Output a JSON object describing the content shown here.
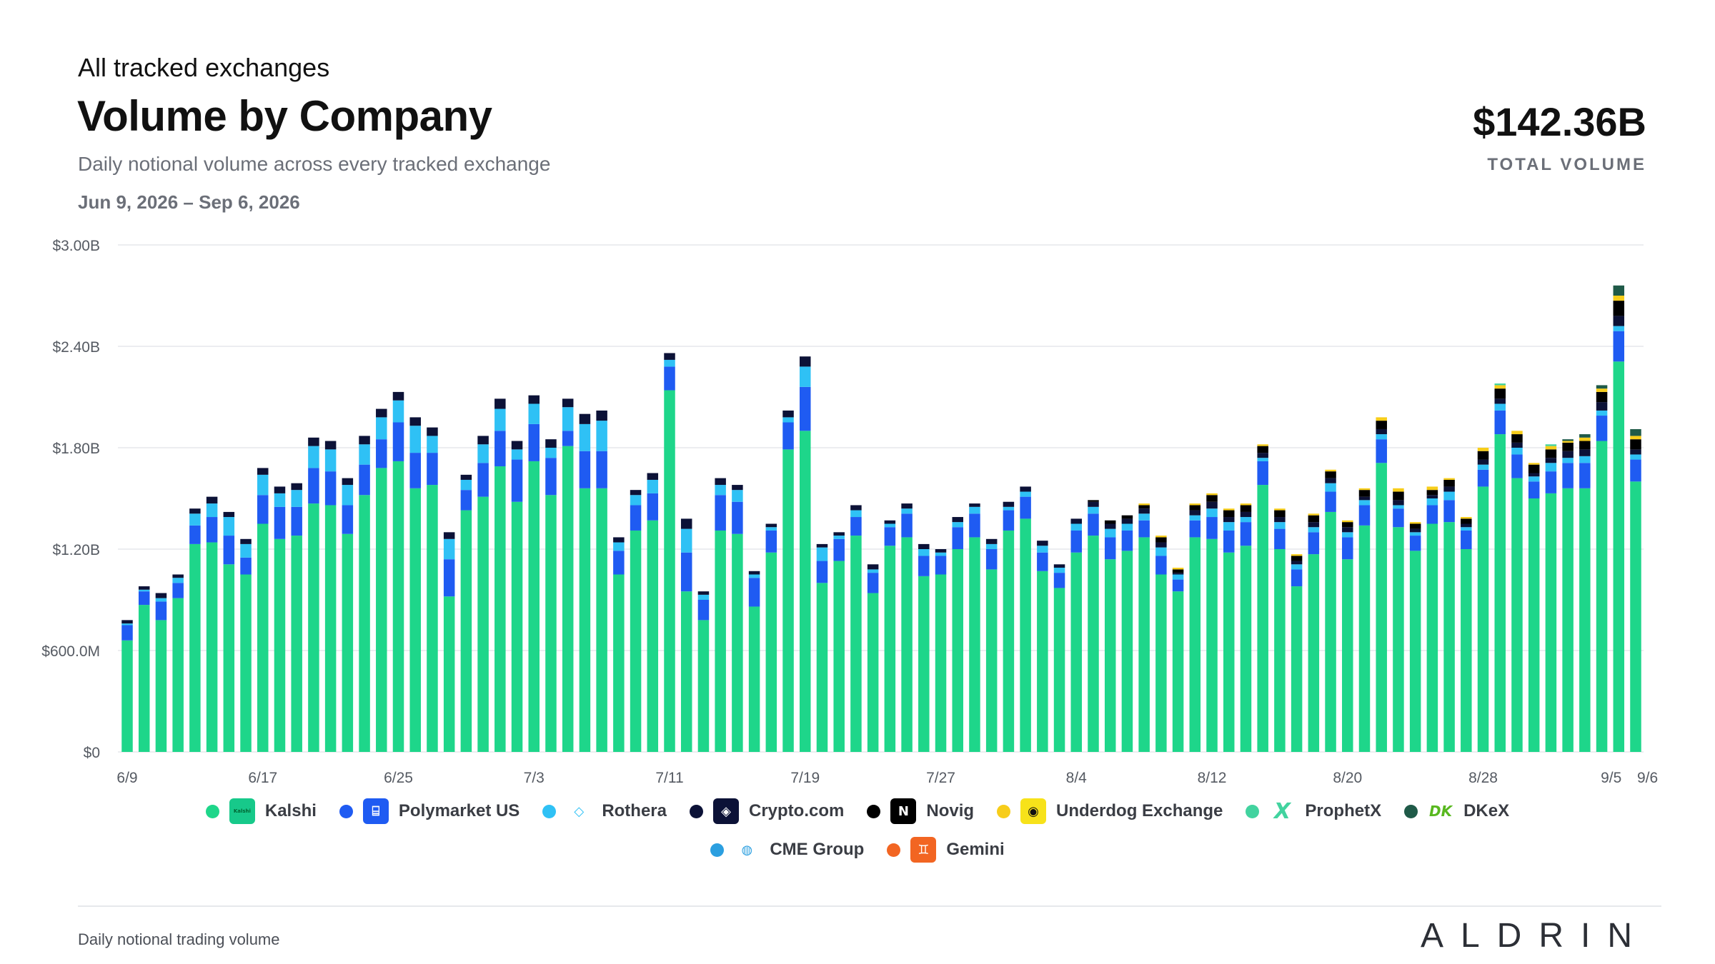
{
  "header": {
    "kicker": "All tracked exchanges",
    "title": "Volume by Company",
    "subtitle": "Daily notional volume across every tracked exchange",
    "date_range": "Jun 9, 2026 – Sep 6, 2026",
    "total_value": "$142.36B",
    "total_label": "TOTAL VOLUME"
  },
  "footer": {
    "note": "Daily notional trading volume",
    "brand": "ALDRIN"
  },
  "legend": [
    {
      "name": "Kalshi",
      "color": "#1ed68a",
      "logo_bg": "#17c98a",
      "logo_text": "Kalshi",
      "icon": "kalshi-logo"
    },
    {
      "name": "Polymarket US",
      "color": "#1f5bf2",
      "logo_bg": "#1f5bf2",
      "logo_text": "⌸",
      "icon": "polymarket-logo"
    },
    {
      "name": "Rothera",
      "color": "#2fc1f5",
      "logo_bg": "#ffffff",
      "logo_text": "◇",
      "icon": "rothera-logo"
    },
    {
      "name": "Crypto.com",
      "color": "#0c1237",
      "logo_bg": "#0c1237",
      "logo_text": "◈",
      "icon": "crypto-com-logo"
    },
    {
      "name": "Novig",
      "color": "#000000",
      "logo_bg": "#000000",
      "logo_text": "N",
      "icon": "novig-logo"
    },
    {
      "name": "Underdog Exchange",
      "color": "#f7cd1a",
      "logo_bg": "#f7e21a",
      "logo_text": "◉",
      "icon": "underdog-logo"
    },
    {
      "name": "ProphetX",
      "color": "#42d39f",
      "logo_bg": "#ffffff",
      "logo_text": "X",
      "icon": "prophetx-logo"
    },
    {
      "name": "DKeX",
      "color": "#1f5a48",
      "logo_bg": "#ffffff",
      "logo_text": "DK",
      "icon": "dkex-logo"
    },
    {
      "name": "CME Group",
      "color": "#2b9fe0",
      "logo_bg": "#ffffff",
      "logo_text": "◍",
      "icon": "cme-group-logo"
    },
    {
      "name": "Gemini",
      "color": "#f26522",
      "logo_bg": "#f26522",
      "logo_text": "♊",
      "icon": "gemini-logo"
    }
  ],
  "chart_data": {
    "type": "bar",
    "stacked": true,
    "y_ticks": [
      "$0",
      "$600.0M",
      "$1.20B",
      "$1.80B",
      "$2.40B",
      "$3.00B"
    ],
    "ylim": [
      0,
      3.0
    ],
    "y_unit": "B",
    "x_tick_labels": [
      {
        "label": "6/9",
        "index": 0
      },
      {
        "label": "6/17",
        "index": 8
      },
      {
        "label": "6/25",
        "index": 16
      },
      {
        "label": "7/3",
        "index": 24
      },
      {
        "label": "7/11",
        "index": 32
      },
      {
        "label": "7/19",
        "index": 40
      },
      {
        "label": "7/27",
        "index": 48
      },
      {
        "label": "8/4",
        "index": 56
      },
      {
        "label": "8/12",
        "index": 64
      },
      {
        "label": "8/20",
        "index": 72
      },
      {
        "label": "8/28",
        "index": 80
      },
      {
        "label": "9/5",
        "index": 88
      },
      {
        "label": "9/6",
        "index": 89
      }
    ],
    "grid": true,
    "series_names": [
      "Kalshi",
      "Polymarket US",
      "Rothera",
      "Crypto.com",
      "Novig",
      "Underdog Exchange",
      "ProphetX",
      "DKeX"
    ],
    "series_colors": [
      "#1ed68a",
      "#1f5bf2",
      "#2fc1f5",
      "#0c1237",
      "#000000",
      "#f7cd1a",
      "#42d39f",
      "#1f5a48"
    ],
    "categories": [
      "6/9",
      "6/10",
      "6/11",
      "6/12",
      "6/13",
      "6/14",
      "6/15",
      "6/16",
      "6/17",
      "6/18",
      "6/19",
      "6/20",
      "6/21",
      "6/22",
      "6/23",
      "6/24",
      "6/25",
      "6/26",
      "6/27",
      "6/28",
      "6/29",
      "6/30",
      "7/1",
      "7/2",
      "7/3",
      "7/4",
      "7/5",
      "7/6",
      "7/7",
      "7/8",
      "7/9",
      "7/10",
      "7/11",
      "7/12",
      "7/13",
      "7/14",
      "7/15",
      "7/16",
      "7/17",
      "7/18",
      "7/19",
      "7/20",
      "7/21",
      "7/22",
      "7/23",
      "7/24",
      "7/25",
      "7/26",
      "7/27",
      "7/28",
      "7/29",
      "7/30",
      "7/31",
      "8/1",
      "8/2",
      "8/3",
      "8/4",
      "8/5",
      "8/6",
      "8/7",
      "8/8",
      "8/9",
      "8/10",
      "8/11",
      "8/12",
      "8/13",
      "8/14",
      "8/15",
      "8/16",
      "8/17",
      "8/18",
      "8/19",
      "8/20",
      "8/21",
      "8/22",
      "8/23",
      "8/24",
      "8/25",
      "8/26",
      "8/27",
      "8/28",
      "8/29",
      "8/30",
      "8/31",
      "9/1",
      "9/2",
      "9/3",
      "9/4",
      "9/5",
      "9/6"
    ],
    "stacks": [
      [
        0.66,
        0.09,
        0.01,
        0.02,
        0,
        0,
        0,
        0
      ],
      [
        0.87,
        0.08,
        0.01,
        0.02,
        0,
        0,
        0,
        0
      ],
      [
        0.78,
        0.11,
        0.02,
        0.03,
        0,
        0,
        0,
        0
      ],
      [
        0.91,
        0.09,
        0.03,
        0.02,
        0,
        0,
        0,
        0
      ],
      [
        1.23,
        0.11,
        0.07,
        0.03,
        0,
        0,
        0,
        0
      ],
      [
        1.24,
        0.15,
        0.08,
        0.04,
        0,
        0,
        0,
        0
      ],
      [
        1.11,
        0.17,
        0.11,
        0.03,
        0,
        0,
        0,
        0
      ],
      [
        1.05,
        0.1,
        0.08,
        0.03,
        0,
        0,
        0,
        0
      ],
      [
        1.35,
        0.17,
        0.12,
        0.04,
        0,
        0,
        0,
        0
      ],
      [
        1.26,
        0.19,
        0.08,
        0.04,
        0,
        0,
        0,
        0
      ],
      [
        1.28,
        0.17,
        0.1,
        0.04,
        0,
        0,
        0,
        0
      ],
      [
        1.47,
        0.21,
        0.13,
        0.05,
        0,
        0,
        0,
        0
      ],
      [
        1.46,
        0.2,
        0.13,
        0.05,
        0,
        0,
        0,
        0
      ],
      [
        1.29,
        0.17,
        0.12,
        0.04,
        0,
        0,
        0,
        0
      ],
      [
        1.52,
        0.18,
        0.12,
        0.05,
        0,
        0,
        0,
        0
      ],
      [
        1.68,
        0.17,
        0.13,
        0.05,
        0,
        0,
        0,
        0
      ],
      [
        1.72,
        0.23,
        0.13,
        0.05,
        0,
        0,
        0,
        0
      ],
      [
        1.56,
        0.21,
        0.16,
        0.05,
        0,
        0,
        0,
        0
      ],
      [
        1.58,
        0.19,
        0.1,
        0.05,
        0,
        0,
        0,
        0
      ],
      [
        0.92,
        0.22,
        0.12,
        0.04,
        0,
        0,
        0,
        0
      ],
      [
        1.43,
        0.12,
        0.06,
        0.03,
        0,
        0,
        0,
        0
      ],
      [
        1.51,
        0.2,
        0.11,
        0.05,
        0,
        0,
        0,
        0
      ],
      [
        1.69,
        0.21,
        0.13,
        0.06,
        0,
        0,
        0,
        0
      ],
      [
        1.48,
        0.25,
        0.06,
        0.05,
        0,
        0,
        0,
        0
      ],
      [
        1.72,
        0.22,
        0.12,
        0.05,
        0,
        0,
        0,
        0
      ],
      [
        1.52,
        0.22,
        0.06,
        0.05,
        0,
        0,
        0,
        0
      ],
      [
        1.81,
        0.09,
        0.14,
        0.05,
        0,
        0,
        0,
        0
      ],
      [
        1.56,
        0.22,
        0.16,
        0.06,
        0,
        0,
        0,
        0
      ],
      [
        1.56,
        0.22,
        0.18,
        0.06,
        0,
        0,
        0,
        0
      ],
      [
        1.05,
        0.14,
        0.05,
        0.03,
        0,
        0,
        0,
        0
      ],
      [
        1.31,
        0.15,
        0.06,
        0.03,
        0,
        0,
        0,
        0
      ],
      [
        1.37,
        0.16,
        0.08,
        0.04,
        0,
        0,
        0,
        0
      ],
      [
        2.14,
        0.14,
        0.04,
        0.04,
        0,
        0,
        0,
        0
      ],
      [
        0.95,
        0.23,
        0.14,
        0.06,
        0,
        0,
        0,
        0
      ],
      [
        0.78,
        0.12,
        0.03,
        0.02,
        0,
        0,
        0,
        0
      ],
      [
        1.31,
        0.21,
        0.06,
        0.04,
        0,
        0,
        0,
        0
      ],
      [
        1.29,
        0.19,
        0.07,
        0.03,
        0,
        0,
        0,
        0
      ],
      [
        0.86,
        0.17,
        0.02,
        0.02,
        0,
        0,
        0,
        0
      ],
      [
        1.18,
        0.13,
        0.02,
        0.02,
        0,
        0,
        0,
        0
      ],
      [
        1.79,
        0.16,
        0.03,
        0.04,
        0,
        0,
        0,
        0
      ],
      [
        1.9,
        0.26,
        0.12,
        0.06,
        0,
        0,
        0,
        0
      ],
      [
        1.0,
        0.13,
        0.08,
        0.02,
        0,
        0,
        0,
        0
      ],
      [
        1.13,
        0.13,
        0.02,
        0.02,
        0,
        0,
        0,
        0
      ],
      [
        1.28,
        0.11,
        0.04,
        0.03,
        0,
        0,
        0,
        0
      ],
      [
        0.94,
        0.12,
        0.02,
        0.03,
        0,
        0,
        0,
        0
      ],
      [
        1.22,
        0.11,
        0.02,
        0.02,
        0,
        0,
        0,
        0
      ],
      [
        1.27,
        0.14,
        0.03,
        0.03,
        0,
        0,
        0,
        0
      ],
      [
        1.04,
        0.12,
        0.04,
        0.03,
        0,
        0,
        0,
        0
      ],
      [
        1.05,
        0.11,
        0.02,
        0.02,
        0,
        0,
        0,
        0
      ],
      [
        1.2,
        0.13,
        0.03,
        0.03,
        0,
        0,
        0,
        0
      ],
      [
        1.27,
        0.14,
        0.04,
        0.02,
        0,
        0,
        0,
        0
      ],
      [
        1.08,
        0.12,
        0.03,
        0.03,
        0,
        0,
        0,
        0
      ],
      [
        1.31,
        0.12,
        0.02,
        0.03,
        0,
        0,
        0,
        0
      ],
      [
        1.38,
        0.13,
        0.03,
        0.03,
        0,
        0,
        0,
        0
      ],
      [
        1.07,
        0.11,
        0.04,
        0.03,
        0,
        0,
        0,
        0
      ],
      [
        0.97,
        0.09,
        0.03,
        0.02,
        0,
        0,
        0,
        0
      ],
      [
        1.18,
        0.13,
        0.04,
        0.03,
        0,
        0,
        0,
        0
      ],
      [
        1.28,
        0.13,
        0.04,
        0.03,
        0.01,
        0,
        0,
        0
      ],
      [
        1.14,
        0.13,
        0.05,
        0.03,
        0.02,
        0,
        0,
        0
      ],
      [
        1.19,
        0.12,
        0.04,
        0.03,
        0.02,
        0,
        0,
        0
      ],
      [
        1.27,
        0.1,
        0.04,
        0.03,
        0.02,
        0.01,
        0,
        0
      ],
      [
        1.05,
        0.11,
        0.05,
        0.03,
        0.03,
        0.01,
        0,
        0
      ],
      [
        0.95,
        0.07,
        0.03,
        0.01,
        0.02,
        0.01,
        0,
        0
      ],
      [
        1.27,
        0.1,
        0.03,
        0.03,
        0.03,
        0.01,
        0,
        0
      ],
      [
        1.26,
        0.13,
        0.05,
        0.04,
        0.04,
        0.01,
        0,
        0
      ],
      [
        1.18,
        0.13,
        0.05,
        0.03,
        0.04,
        0.01,
        0,
        0
      ],
      [
        1.22,
        0.14,
        0.03,
        0.03,
        0.04,
        0.01,
        0,
        0
      ],
      [
        1.58,
        0.14,
        0.02,
        0.03,
        0.04,
        0.01,
        0,
        0
      ],
      [
        1.2,
        0.12,
        0.04,
        0.03,
        0.04,
        0.01,
        0,
        0
      ],
      [
        0.98,
        0.1,
        0.03,
        0.02,
        0.03,
        0.01,
        0,
        0
      ],
      [
        1.17,
        0.13,
        0.03,
        0.03,
        0.04,
        0.01,
        0,
        0
      ],
      [
        1.42,
        0.12,
        0.05,
        0.03,
        0.04,
        0.01,
        0,
        0
      ],
      [
        1.14,
        0.13,
        0.03,
        0.03,
        0.03,
        0.01,
        0,
        0
      ],
      [
        1.34,
        0.12,
        0.03,
        0.02,
        0.04,
        0.01,
        0,
        0
      ],
      [
        1.71,
        0.14,
        0.03,
        0.03,
        0.05,
        0.02,
        0,
        0
      ],
      [
        1.33,
        0.11,
        0.02,
        0.03,
        0.05,
        0.02,
        0,
        0
      ],
      [
        1.19,
        0.09,
        0.02,
        0.02,
        0.03,
        0.01,
        0,
        0
      ],
      [
        1.35,
        0.11,
        0.04,
        0.02,
        0.03,
        0.02,
        0,
        0
      ],
      [
        1.36,
        0.13,
        0.05,
        0.03,
        0.04,
        0.01,
        0,
        0
      ],
      [
        1.2,
        0.11,
        0.02,
        0.02,
        0.03,
        0.01,
        0,
        0
      ],
      [
        1.57,
        0.1,
        0.03,
        0.03,
        0.05,
        0.02,
        0,
        0
      ],
      [
        1.88,
        0.14,
        0.04,
        0.03,
        0.06,
        0.02,
        0.01,
        0
      ],
      [
        1.62,
        0.14,
        0.04,
        0.03,
        0.05,
        0.02,
        0,
        0
      ],
      [
        1.5,
        0.1,
        0.03,
        0.02,
        0.05,
        0.01,
        0,
        0
      ],
      [
        1.53,
        0.13,
        0.05,
        0.03,
        0.05,
        0.02,
        0.01,
        0
      ],
      [
        1.56,
        0.15,
        0.03,
        0.04,
        0.05,
        0.01,
        0,
        0.01
      ],
      [
        1.56,
        0.15,
        0.04,
        0.04,
        0.05,
        0.02,
        0,
        0.02
      ],
      [
        1.84,
        0.15,
        0.03,
        0.05,
        0.06,
        0.02,
        0,
        0.02
      ],
      [
        2.31,
        0.18,
        0.03,
        0.06,
        0.09,
        0.03,
        0,
        0.06
      ],
      [
        1.6,
        0.13,
        0.03,
        0.03,
        0.06,
        0.02,
        0,
        0.04
      ]
    ]
  }
}
